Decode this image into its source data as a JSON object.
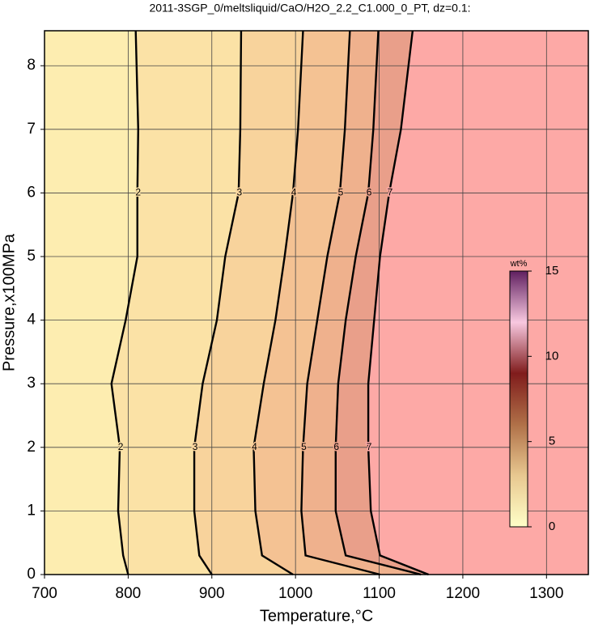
{
  "chart_data": {
    "type": "contour",
    "title": "2011-3SGP_0/meltsliquid/CaO/H2O_2.2_C1.000_0_PT, dz=0.1:",
    "x_label": "Temperature,°C",
    "y_label": "Pressure,x100MPa",
    "xlim": [
      700,
      1350
    ],
    "ylim": [
      0,
      8.55
    ],
    "xticks": [
      700,
      800,
      900,
      1000,
      1100,
      1200,
      1300
    ],
    "yticks": [
      0,
      1,
      2,
      3,
      4,
      5,
      6,
      7,
      8
    ],
    "grid": true,
    "background_color": "#fdedb0",
    "y": [
      0,
      0.3,
      1,
      2,
      3,
      4,
      5,
      6,
      7,
      8.55
    ],
    "series": [
      {
        "level": 2,
        "color": "#fbe2a6",
        "x": [
          800,
          794,
          788,
          790,
          780,
          797,
          811,
          811,
          812,
          809
        ]
      },
      {
        "level": 3,
        "color": "#f8d39c",
        "x": [
          900,
          885,
          879,
          879,
          889,
          906,
          916,
          932,
          934,
          935
        ]
      },
      {
        "level": 4,
        "color": "#f4c293",
        "x": [
          997,
          960,
          952,
          950,
          962,
          976,
          987,
          997,
          1003,
          1009
        ]
      },
      {
        "level": 5,
        "color": "#efb18d",
        "x": [
          1101,
          1012,
          1007,
          1009,
          1014,
          1026,
          1038,
          1053,
          1059,
          1065
        ]
      },
      {
        "level": 6,
        "color": "#e99f8a",
        "x": [
          1150,
          1060,
          1048,
          1048,
          1051,
          1060,
          1072,
          1087,
          1093,
          1099
        ]
      },
      {
        "level": 7,
        "color": "#fda9a6",
        "x": [
          1159,
          1101,
          1090,
          1087,
          1087,
          1094,
          1101,
          1112,
          1126,
          1140
        ]
      }
    ],
    "colorbar": {
      "label": "wt%",
      "lim": [
        0,
        15
      ],
      "ticks": [
        0,
        5,
        10,
        15
      ],
      "colors": [
        "#ffffc8",
        "#e8c890",
        "#b07048",
        "#801c1c",
        "#f8c8e0",
        "#602060"
      ]
    }
  }
}
